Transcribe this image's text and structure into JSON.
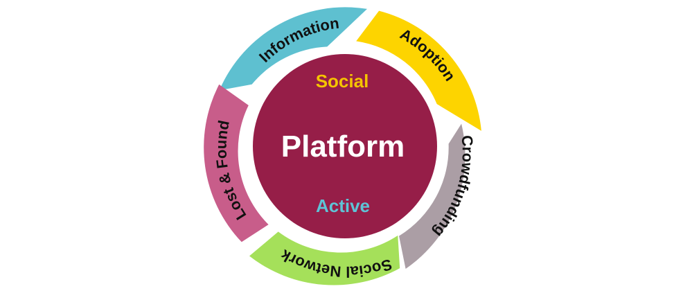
{
  "center": {
    "top_label": "Social",
    "main_label": "Platform",
    "bottom_label": "Active",
    "fill_color": "#961e48",
    "top_label_color": "#f5c400",
    "main_label_color": "#ffffff",
    "bottom_label_color": "#5ec4d6"
  },
  "segments": [
    {
      "label": "Information",
      "color": "#5ec0d0"
    },
    {
      "label": "Adoption",
      "color": "#fdd400"
    },
    {
      "label": "Crowdfunding",
      "color": "#ab9ea5"
    },
    {
      "label": "Social Network",
      "color": "#a5e05a"
    },
    {
      "label": "Lost & Found",
      "color": "#c85d8a"
    }
  ]
}
